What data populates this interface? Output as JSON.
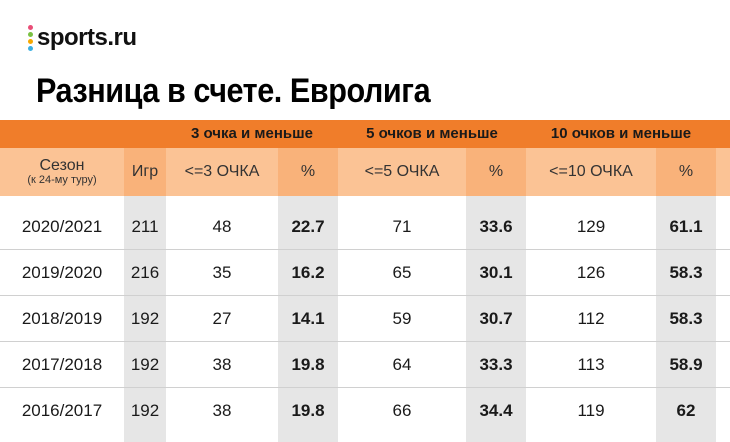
{
  "brand": {
    "logo_text": "sports.ru",
    "dot_colors": [
      "#e94e77",
      "#7ac143",
      "#f6a800",
      "#3ab0e2"
    ]
  },
  "title": "Разница в счете. Евролига",
  "colors": {
    "band": "#f07d2a",
    "header": "#fbc395",
    "header_pct": "#f9b27a",
    "shade": "#e6e6e6"
  },
  "groups": [
    "3 очка и меньше",
    "5 очков и меньше",
    "10 очков и меньше"
  ],
  "headers": {
    "season": "Сезон",
    "season_note": "(к 24-му туру)",
    "games": "Игр",
    "le3": "<=3 ОЧКА",
    "le5": "<=5 ОЧКА",
    "le10": "<=10 ОЧКА",
    "pct": "%"
  },
  "rows": [
    {
      "season": "2020/2021",
      "games": "211",
      "le3": "48",
      "pct3": "22.7",
      "le5": "71",
      "pct5": "33.6",
      "le10": "129",
      "pct10": "61.1"
    },
    {
      "season": "2019/2020",
      "games": "216",
      "le3": "35",
      "pct3": "16.2",
      "le5": "65",
      "pct5": "30.1",
      "le10": "126",
      "pct10": "58.3"
    },
    {
      "season": "2018/2019",
      "games": "192",
      "le3": "27",
      "pct3": "14.1",
      "le5": "59",
      "pct5": "30.7",
      "le10": "112",
      "pct10": "58.3"
    },
    {
      "season": "2017/2018",
      "games": "192",
      "le3": "38",
      "pct3": "19.8",
      "le5": "64",
      "pct5": "33.3",
      "le10": "113",
      "pct10": "58.9"
    },
    {
      "season": "2016/2017",
      "games": "192",
      "le3": "38",
      "pct3": "19.8",
      "le5": "66",
      "pct5": "34.4",
      "le10": "119",
      "pct10": "62"
    }
  ]
}
